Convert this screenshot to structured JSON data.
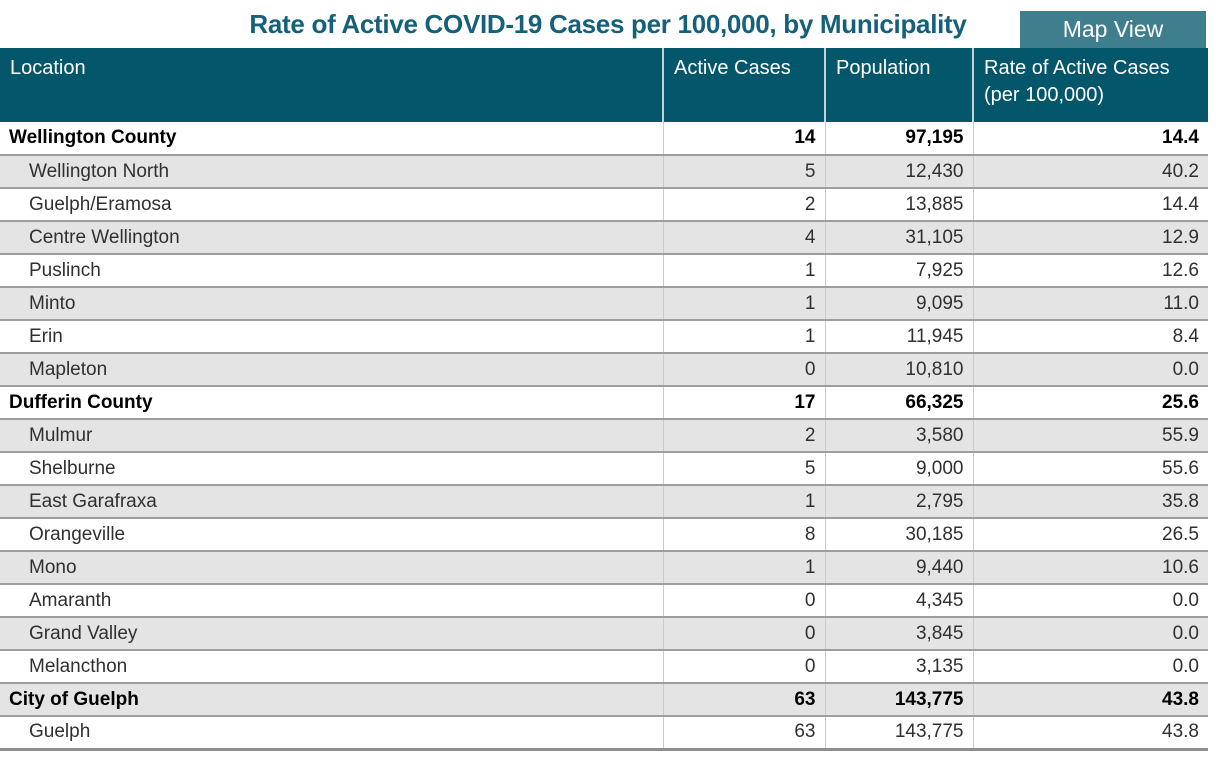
{
  "title": "Rate of Active COVID-19 Cases per 100,000, by Municipality",
  "map_view_button": {
    "label": "Map View"
  },
  "colors": {
    "header_bg": "#04566b",
    "title": "#16607a",
    "button_bg": "#3f7e8d",
    "row_alt_bg": "#e4e4e4"
  },
  "table": {
    "columns": [
      "Location",
      "Active Cases",
      "Population",
      "Rate of Active Cases (per 100,000)"
    ],
    "rows": [
      {
        "location": "Wellington County",
        "active_cases": "14",
        "population": "97,195",
        "rate": "14.4",
        "group": true
      },
      {
        "location": "Wellington North",
        "active_cases": "5",
        "population": "12,430",
        "rate": "40.2",
        "group": false
      },
      {
        "location": "Guelph/Eramosa",
        "active_cases": "2",
        "population": "13,885",
        "rate": "14.4",
        "group": false
      },
      {
        "location": "Centre Wellington",
        "active_cases": "4",
        "population": "31,105",
        "rate": "12.9",
        "group": false
      },
      {
        "location": "Puslinch",
        "active_cases": "1",
        "population": "7,925",
        "rate": "12.6",
        "group": false
      },
      {
        "location": "Minto",
        "active_cases": "1",
        "population": "9,095",
        "rate": "11.0",
        "group": false
      },
      {
        "location": "Erin",
        "active_cases": "1",
        "population": "11,945",
        "rate": "8.4",
        "group": false
      },
      {
        "location": "Mapleton",
        "active_cases": "0",
        "population": "10,810",
        "rate": "0.0",
        "group": false
      },
      {
        "location": "Dufferin County",
        "active_cases": "17",
        "population": "66,325",
        "rate": "25.6",
        "group": true
      },
      {
        "location": "Mulmur",
        "active_cases": "2",
        "population": "3,580",
        "rate": "55.9",
        "group": false
      },
      {
        "location": "Shelburne",
        "active_cases": "5",
        "population": "9,000",
        "rate": "55.6",
        "group": false
      },
      {
        "location": "East Garafraxa",
        "active_cases": "1",
        "population": "2,795",
        "rate": "35.8",
        "group": false
      },
      {
        "location": "Orangeville",
        "active_cases": "8",
        "population": "30,185",
        "rate": "26.5",
        "group": false
      },
      {
        "location": "Mono",
        "active_cases": "1",
        "population": "9,440",
        "rate": "10.6",
        "group": false
      },
      {
        "location": "Amaranth",
        "active_cases": "0",
        "population": "4,345",
        "rate": "0.0",
        "group": false
      },
      {
        "location": "Grand Valley",
        "active_cases": "0",
        "population": "3,845",
        "rate": "0.0",
        "group": false
      },
      {
        "location": "Melancthon",
        "active_cases": "0",
        "population": "3,135",
        "rate": "0.0",
        "group": false
      },
      {
        "location": "City of Guelph",
        "active_cases": "63",
        "population": "143,775",
        "rate": "43.8",
        "group": true
      },
      {
        "location": "Guelph",
        "active_cases": "63",
        "population": "143,775",
        "rate": "43.8",
        "group": false
      }
    ]
  }
}
